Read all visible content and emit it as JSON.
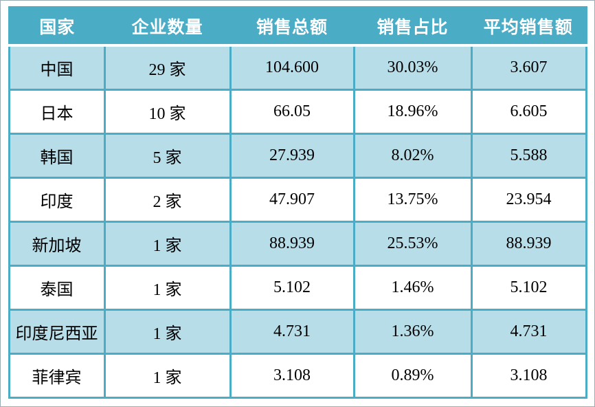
{
  "chart_data": {
    "type": "table",
    "columns": [
      "国家",
      "企业数量",
      "销售总额",
      "销售占比",
      "平均销售额"
    ],
    "rows": [
      [
        "中国",
        "29 家",
        "104.600",
        "30.03%",
        "3.607"
      ],
      [
        "日本",
        "10 家",
        "66.05",
        "18.96%",
        "6.605"
      ],
      [
        "韩国",
        "5 家",
        "27.939",
        "8.02%",
        "5.588"
      ],
      [
        "印度",
        "2 家",
        "47.907",
        "13.75%",
        "23.954"
      ],
      [
        "新加坡",
        "1 家",
        "88.939",
        "25.53%",
        "88.939"
      ],
      [
        "泰国",
        "1 家",
        "5.102",
        "1.46%",
        "5.102"
      ],
      [
        "印度尼西亚",
        "1 家",
        "4.731",
        "1.36%",
        "4.731"
      ],
      [
        "菲律宾",
        "1 家",
        "3.108",
        "0.89%",
        "3.108"
      ]
    ],
    "layout": {
      "header_style": "solid-fill",
      "row_banding": "odd-rows-shaded",
      "grid": "on"
    },
    "colors": {
      "header_bg": "#4BACC6",
      "header_text": "#FFFFFF",
      "row_shaded_bg": "#B6DDE8",
      "row_plain_bg": "#FFFFFF",
      "cell_border": "#4BACC6",
      "body_text": "#000000",
      "frame_border": "#9AABB1"
    }
  }
}
